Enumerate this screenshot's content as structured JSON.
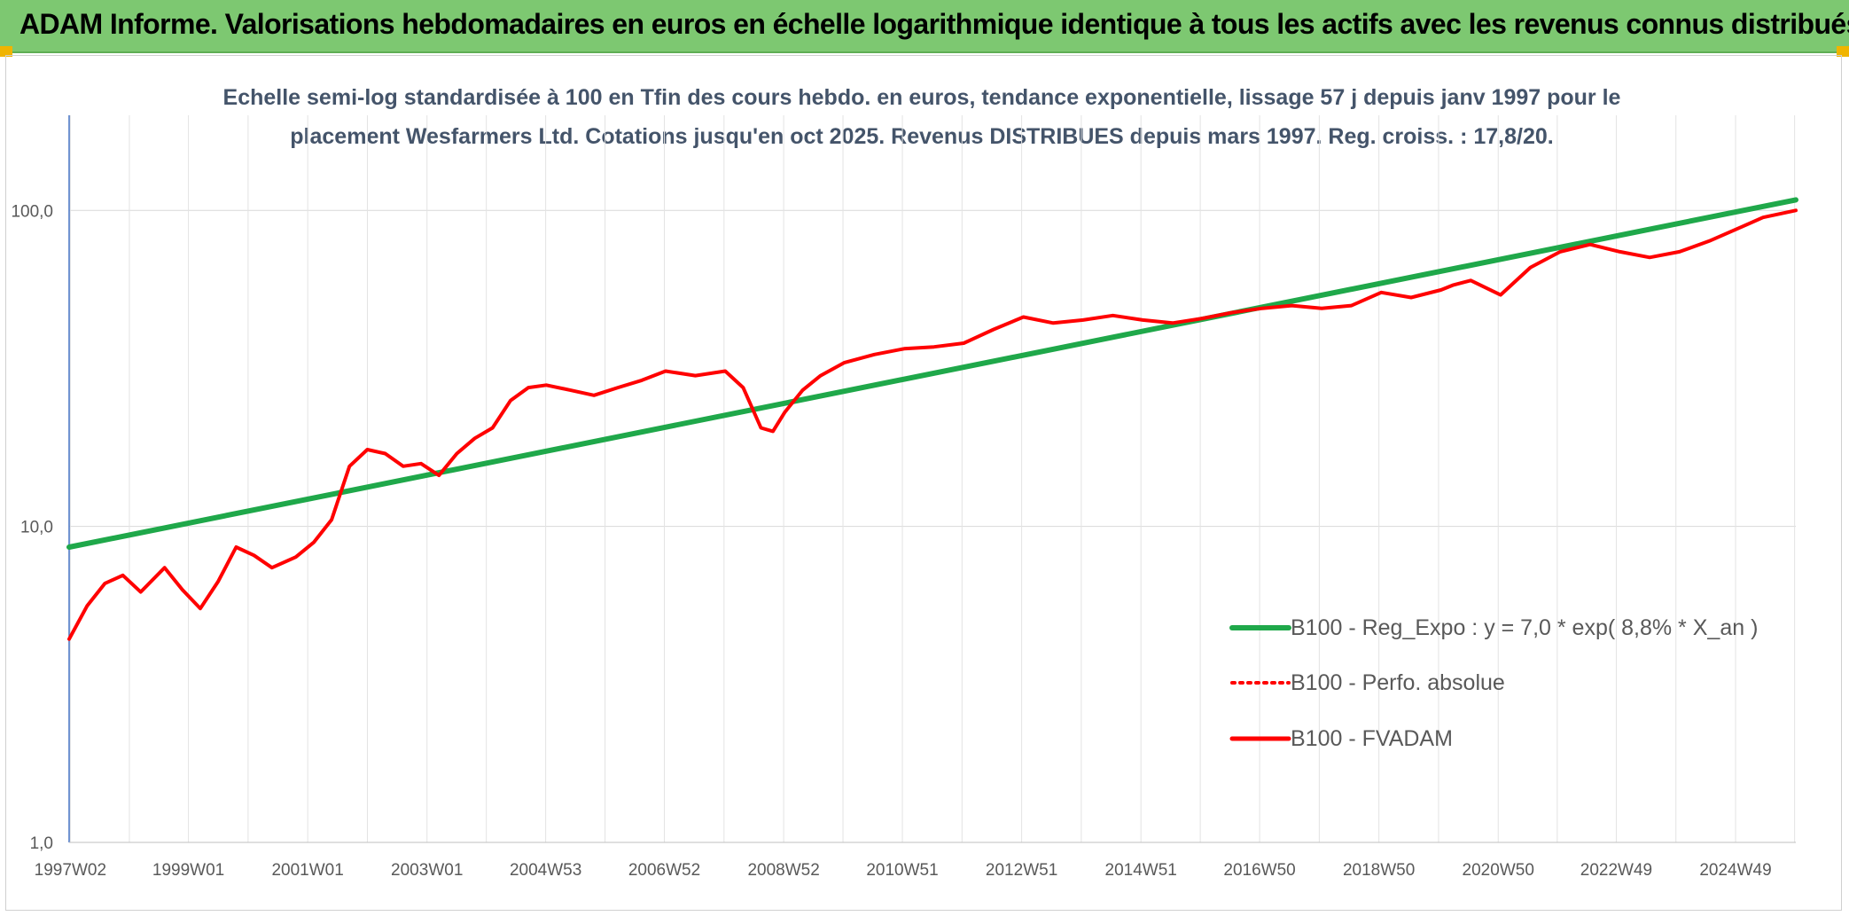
{
  "banner": {
    "title": "ADAM Informe. Valorisations hebdomadaires en euros en échelle logarithmique identique à tous les actifs avec les revenus connus distribués",
    "color": "#7dc871"
  },
  "chart_data": {
    "type": "line",
    "title": "Echelle semi-log standardisée à 100 en Tfin des cours hebdo. en euros, tendance exponentielle, lissage 57 j depuis janv 1997 pour le placement Wesfarmers Ltd. Cotations jusqu'en oct 2025. Revenus DISTRIBUES depuis mars 1997. Reg. croiss. : 17,8/20.",
    "title_lines": [
      "Echelle semi-log standardisée à 100 en Tfin des cours hebdo. en euros, tendance exponentielle, lissage 57 j depuis janv 1997 pour le",
      "placement Wesfarmers Ltd. Cotations jusqu'en oct 2025. Revenus DISTRIBUES depuis mars 1997. Reg. croiss. : 17,8/20."
    ],
    "y_scale": "log",
    "ylim": [
      1,
      200
    ],
    "xlim": [
      1997.0,
      2025.95
    ],
    "y_ticks": [
      {
        "value": 1,
        "label": "1,0"
      },
      {
        "value": 10,
        "label": "10,0"
      },
      {
        "value": 100,
        "label": "100,0"
      }
    ],
    "x_ticks": [
      {
        "value": 1997.02,
        "label": "1997W02"
      },
      {
        "value": 1999.0,
        "label": "1999W01"
      },
      {
        "value": 2001.0,
        "label": "2001W01"
      },
      {
        "value": 2003.0,
        "label": "2003W01"
      },
      {
        "value": 2004.99,
        "label": "2004W53"
      },
      {
        "value": 2006.98,
        "label": "2006W52"
      },
      {
        "value": 2008.98,
        "label": "2008W52"
      },
      {
        "value": 2010.97,
        "label": "2010W51"
      },
      {
        "value": 2012.97,
        "label": "2012W51"
      },
      {
        "value": 2014.97,
        "label": "2014W51"
      },
      {
        "value": 2016.96,
        "label": "2016W50"
      },
      {
        "value": 2018.96,
        "label": "2018W50"
      },
      {
        "value": 2020.96,
        "label": "2020W50"
      },
      {
        "value": 2022.94,
        "label": "2022W49"
      },
      {
        "value": 2024.94,
        "label": "2024W49"
      }
    ],
    "grid": true,
    "legend_position": "lower-right",
    "series": [
      {
        "name": "B100 - Reg_Expo : y = 7,0 * exp( 8,8% *  X_an )",
        "style": "solid-thick",
        "color": "#1fa84a",
        "x": [
          1997.0,
          2025.95
        ],
        "y": [
          8.6,
          108.0
        ]
      },
      {
        "name": "B100 - Perfo. absolue",
        "style": "dotted",
        "color": "#ff0000",
        "x": [
          1997.0,
          1997.3,
          1997.6,
          1997.9,
          1998.2,
          1998.6,
          1998.9,
          1999.2,
          1999.5,
          1999.8,
          2000.1,
          2000.4,
          2000.8,
          2001.1,
          2001.4,
          2001.7,
          2002.0,
          2002.3,
          2002.6,
          2002.9,
          2003.2,
          2003.5,
          2003.8,
          2004.1,
          2004.4,
          2004.7,
          2005.0,
          2005.4,
          2005.8,
          2006.2,
          2006.6,
          2007.0,
          2007.5,
          2008.0,
          2008.3,
          2008.6,
          2008.8,
          2009.0,
          2009.3,
          2009.6,
          2010.0,
          2010.5,
          2011.0,
          2011.5,
          2012.0,
          2012.5,
          2013.0,
          2013.5,
          2014.0,
          2014.5,
          2015.0,
          2015.5,
          2016.0,
          2016.5,
          2017.0,
          2017.5,
          2018.0,
          2018.5,
          2019.0,
          2019.5,
          2020.0,
          2020.2,
          2020.5,
          2021.0,
          2021.5,
          2022.0,
          2022.5,
          2023.0,
          2023.5,
          2024.0,
          2024.5,
          2025.0,
          2025.4,
          2025.95
        ],
        "y": [
          4.4,
          5.6,
          6.6,
          7.0,
          6.2,
          7.4,
          6.3,
          5.5,
          6.7,
          8.6,
          8.1,
          7.4,
          8.0,
          8.9,
          10.5,
          15.5,
          17.5,
          17.0,
          15.5,
          15.8,
          14.5,
          17.0,
          19.0,
          20.5,
          25.0,
          27.5,
          28.0,
          27.0,
          26.0,
          27.5,
          29.0,
          31.0,
          30.0,
          31.0,
          27.5,
          20.5,
          20.0,
          23.0,
          27.0,
          30.0,
          33.0,
          35.0,
          36.5,
          37.0,
          38.0,
          42.0,
          46.0,
          44.0,
          45.0,
          46.5,
          45.0,
          44.0,
          45.5,
          47.5,
          49.0,
          50.0,
          49.0,
          50.0,
          55.0,
          53.0,
          56.0,
          58.0,
          60.0,
          54.0,
          66.0,
          74.0,
          78.0,
          74.0,
          71.0,
          74.0,
          80.0,
          88.0,
          95.0,
          100.0
        ]
      },
      {
        "name": "B100 - FVADAM",
        "style": "solid",
        "color": "#ff0000",
        "x": [
          1997.0,
          1997.3,
          1997.6,
          1997.9,
          1998.2,
          1998.6,
          1998.9,
          1999.2,
          1999.5,
          1999.8,
          2000.1,
          2000.4,
          2000.8,
          2001.1,
          2001.4,
          2001.7,
          2002.0,
          2002.3,
          2002.6,
          2002.9,
          2003.2,
          2003.5,
          2003.8,
          2004.1,
          2004.4,
          2004.7,
          2005.0,
          2005.4,
          2005.8,
          2006.2,
          2006.6,
          2007.0,
          2007.5,
          2008.0,
          2008.3,
          2008.6,
          2008.8,
          2009.0,
          2009.3,
          2009.6,
          2010.0,
          2010.5,
          2011.0,
          2011.5,
          2012.0,
          2012.5,
          2013.0,
          2013.5,
          2014.0,
          2014.5,
          2015.0,
          2015.5,
          2016.0,
          2016.5,
          2017.0,
          2017.5,
          2018.0,
          2018.5,
          2019.0,
          2019.5,
          2020.0,
          2020.2,
          2020.5,
          2021.0,
          2021.5,
          2022.0,
          2022.5,
          2023.0,
          2023.5,
          2024.0,
          2024.5,
          2025.0,
          2025.4,
          2025.95
        ],
        "y": [
          4.4,
          5.6,
          6.6,
          7.0,
          6.2,
          7.4,
          6.3,
          5.5,
          6.7,
          8.6,
          8.1,
          7.4,
          8.0,
          8.9,
          10.5,
          15.5,
          17.5,
          17.0,
          15.5,
          15.8,
          14.5,
          17.0,
          19.0,
          20.5,
          25.0,
          27.5,
          28.0,
          27.0,
          26.0,
          27.5,
          29.0,
          31.0,
          30.0,
          31.0,
          27.5,
          20.5,
          20.0,
          23.0,
          27.0,
          30.0,
          33.0,
          35.0,
          36.5,
          37.0,
          38.0,
          42.0,
          46.0,
          44.0,
          45.0,
          46.5,
          45.0,
          44.0,
          45.5,
          47.5,
          49.0,
          50.0,
          49.0,
          50.0,
          55.0,
          53.0,
          56.0,
          58.0,
          60.0,
          54.0,
          66.0,
          74.0,
          78.0,
          74.0,
          71.0,
          74.0,
          80.0,
          88.0,
          95.0,
          100.0
        ]
      }
    ]
  }
}
